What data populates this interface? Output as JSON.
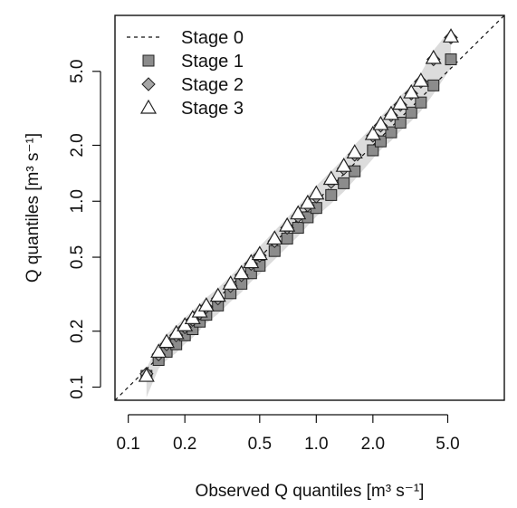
{
  "chart_data": {
    "type": "scatter",
    "xlabel": "Observed Q quantiles [m³ s⁻¹]",
    "ylabel": "Q quantiles [m³ s⁻¹]",
    "x_scale": "log",
    "y_scale": "log",
    "xlim": [
      0.085,
      10
    ],
    "ylim": [
      0.085,
      10
    ],
    "x_ticks": [
      0.1,
      0.2,
      0.5,
      1.0,
      2.0,
      5.0
    ],
    "x_tick_labels": [
      "0.1",
      "0.2",
      "0.5",
      "1.0",
      "2.0",
      "5.0"
    ],
    "y_ticks": [
      0.1,
      0.2,
      0.5,
      1.0,
      2.0,
      5.0
    ],
    "y_tick_labels": [
      "0.1",
      "0.2",
      "0.5",
      "1.0",
      "2.0",
      "5.0"
    ],
    "legend_position": "top-left",
    "grid": false,
    "series": [
      {
        "name": "Stage 0",
        "marker": "dashed-line",
        "color": "#111111",
        "x": [
          0.085,
          10
        ],
        "y": [
          0.085,
          10
        ]
      },
      {
        "name": "Stage 1",
        "marker": "square",
        "color": "#8c8c8c",
        "x": [
          0.125,
          0.145,
          0.16,
          0.18,
          0.2,
          0.22,
          0.24,
          0.26,
          0.3,
          0.35,
          0.4,
          0.45,
          0.5,
          0.6,
          0.7,
          0.8,
          0.9,
          1.0,
          1.2,
          1.4,
          1.6,
          2.0,
          2.2,
          2.5,
          2.8,
          3.2,
          3.6,
          4.2,
          5.2
        ],
        "y": [
          0.115,
          0.14,
          0.155,
          0.17,
          0.19,
          0.205,
          0.225,
          0.245,
          0.275,
          0.32,
          0.36,
          0.41,
          0.45,
          0.54,
          0.63,
          0.72,
          0.82,
          0.92,
          1.08,
          1.25,
          1.45,
          1.88,
          2.1,
          2.35,
          2.65,
          3.0,
          3.4,
          4.2,
          5.8
        ]
      },
      {
        "name": "Stage 2",
        "marker": "diamond",
        "color": "#a6a6a6",
        "x": [
          0.125,
          0.145,
          0.16,
          0.18,
          0.2,
          0.22,
          0.24,
          0.26,
          0.3,
          0.35,
          0.4,
          0.45,
          0.5,
          0.6,
          0.7,
          0.8,
          0.9,
          1.0,
          1.2,
          1.4,
          1.6,
          2.0,
          2.2,
          2.5,
          2.8,
          3.2,
          3.6,
          4.2,
          5.2
        ],
        "y": [
          0.118,
          0.15,
          0.17,
          0.19,
          0.21,
          0.23,
          0.25,
          0.27,
          0.3,
          0.35,
          0.4,
          0.46,
          0.51,
          0.61,
          0.72,
          0.83,
          0.95,
          1.06,
          1.27,
          1.5,
          1.78,
          2.25,
          2.55,
          2.9,
          3.3,
          3.8,
          4.4,
          5.8,
          7.6
        ]
      },
      {
        "name": "Stage 3",
        "marker": "triangle",
        "color": "#ffffff",
        "x": [
          0.125,
          0.145,
          0.16,
          0.18,
          0.2,
          0.22,
          0.24,
          0.26,
          0.3,
          0.35,
          0.4,
          0.45,
          0.5,
          0.6,
          0.7,
          0.8,
          0.9,
          1.0,
          1.2,
          1.4,
          1.6,
          2.0,
          2.2,
          2.5,
          2.8,
          3.2,
          3.6,
          4.2,
          5.2
        ],
        "y": [
          0.115,
          0.155,
          0.175,
          0.195,
          0.215,
          0.235,
          0.255,
          0.275,
          0.31,
          0.36,
          0.41,
          0.47,
          0.52,
          0.63,
          0.74,
          0.86,
          0.98,
          1.1,
          1.32,
          1.55,
          1.83,
          2.3,
          2.6,
          2.95,
          3.35,
          3.85,
          4.45,
          5.9,
          7.7
        ]
      }
    ]
  }
}
